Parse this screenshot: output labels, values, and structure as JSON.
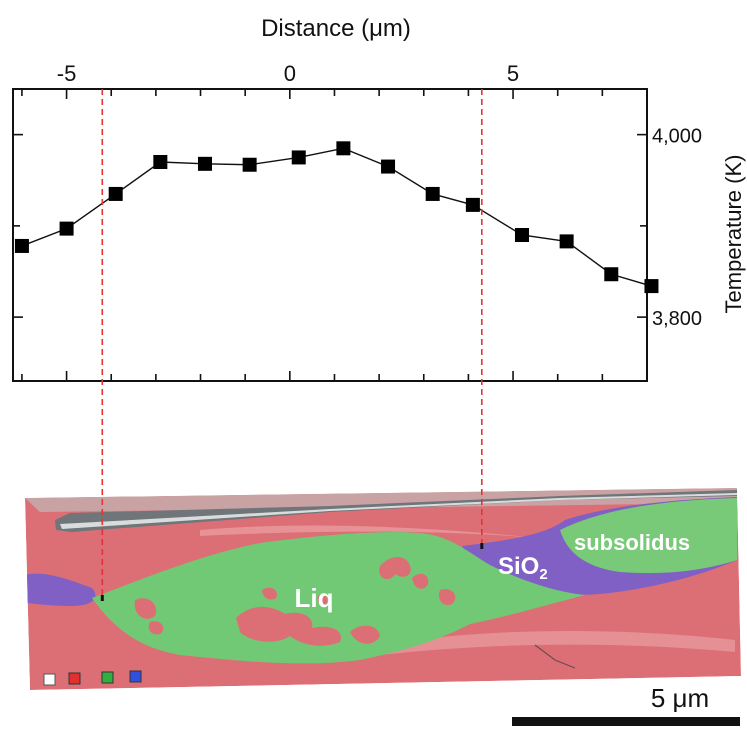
{
  "chart_data": {
    "type": "line",
    "title": "",
    "xlabel": "Distance (μm)",
    "ylabel": "Temperature (K)",
    "xlim": [
      -6.2,
      8.0
    ],
    "ylim": [
      3730,
      4050
    ],
    "x_ticks": [
      -5,
      0,
      5
    ],
    "y_ticks": [
      3800,
      4000
    ],
    "x_tick_labels": [
      "-5",
      "0",
      "5"
    ],
    "y_tick_labels": [
      "3,800",
      "4,000"
    ],
    "grid": false,
    "series": [
      {
        "x": [
          -6.0,
          -5.0,
          -3.9,
          -2.9,
          -1.9,
          -0.9,
          0.2,
          1.2,
          2.2,
          3.2,
          4.1,
          5.2,
          6.2,
          7.2,
          8.1
        ],
        "y": [
          3878,
          3897,
          3935,
          3970,
          3968,
          3967,
          3975,
          3985,
          3965,
          3935,
          3923,
          3890,
          3883,
          3847,
          3834
        ]
      }
    ],
    "guide_lines_x": [
      -4.2,
      4.3
    ]
  },
  "micrograph": {
    "labels": {
      "liq": "Liq",
      "sio2": "SiO",
      "sio2_sub": "2",
      "subsolidus": "subsolidus"
    },
    "scale_bar_label": "5 μm",
    "colors": {
      "melt": "#72c975",
      "matrix": "#dc6f75",
      "sio2": "#8060c4",
      "guide": "#e53232"
    }
  }
}
